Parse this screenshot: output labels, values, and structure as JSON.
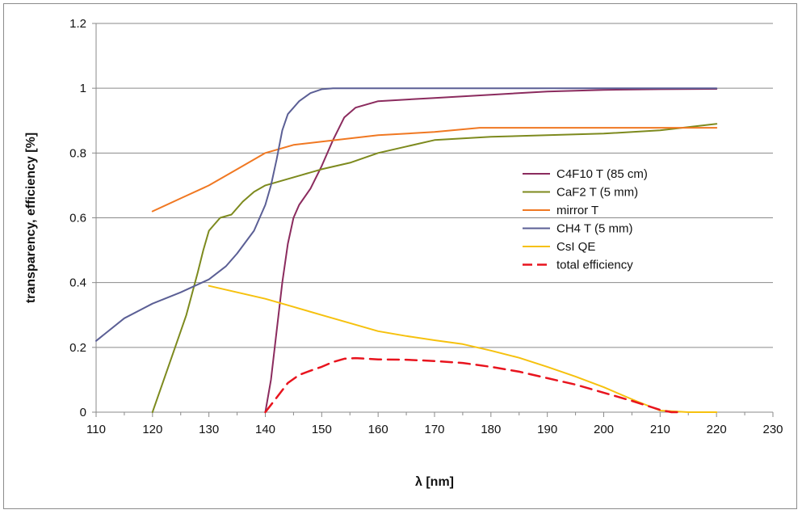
{
  "chart_data": {
    "type": "line",
    "title": "",
    "xlabel": "λ [nm]",
    "ylabel": "transparency, efficiency [%]",
    "xlim": [
      110,
      230
    ],
    "ylim": [
      0,
      1.2
    ],
    "x_ticks": [
      110,
      120,
      130,
      140,
      150,
      160,
      170,
      180,
      190,
      200,
      210,
      220,
      230
    ],
    "y_ticks": [
      0,
      0.2,
      0.4,
      0.6,
      0.8,
      1,
      1.2
    ],
    "x_tick_labels": [
      "110",
      "120",
      "130",
      "140",
      "150",
      "160",
      "170",
      "180",
      "190",
      "200",
      "210",
      "220",
      "230"
    ],
    "y_tick_labels": [
      "0",
      "0.2",
      "0.4",
      "0.6",
      "0.8",
      "1",
      "1.2"
    ],
    "grid": "horizontal",
    "legend_position": "right",
    "series": [
      {
        "name": "C4F10 T (85 cm)",
        "color": "#8B2B5E",
        "dash": "solid",
        "x": [
          140,
          141,
          142,
          143,
          144,
          145,
          146,
          148,
          150,
          152,
          154,
          156,
          158,
          160,
          170,
          180,
          190,
          200,
          210,
          220
        ],
        "y": [
          0,
          0.1,
          0.25,
          0.4,
          0.52,
          0.6,
          0.64,
          0.69,
          0.76,
          0.84,
          0.91,
          0.94,
          0.95,
          0.96,
          0.97,
          0.98,
          0.99,
          0.995,
          0.997,
          0.998
        ]
      },
      {
        "name": "CaF2 T (5 mm)",
        "color": "#7D8A1E",
        "dash": "solid",
        "x": [
          120,
          122,
          124,
          126,
          128,
          129,
          130,
          131,
          132,
          134,
          136,
          138,
          140,
          142,
          144,
          146,
          150,
          155,
          160,
          165,
          170,
          175,
          180,
          190,
          200,
          210,
          220
        ],
        "y": [
          0,
          0.1,
          0.2,
          0.3,
          0.43,
          0.5,
          0.56,
          0.58,
          0.6,
          0.61,
          0.65,
          0.68,
          0.7,
          0.71,
          0.72,
          0.73,
          0.75,
          0.77,
          0.8,
          0.82,
          0.84,
          0.845,
          0.85,
          0.855,
          0.86,
          0.87,
          0.89
        ]
      },
      {
        "name": "mirror T",
        "color": "#F07822",
        "dash": "solid",
        "x": [
          120,
          125,
          130,
          135,
          140,
          145,
          150,
          155,
          160,
          170,
          178,
          190,
          200,
          210,
          220
        ],
        "y": [
          0.62,
          0.66,
          0.7,
          0.75,
          0.8,
          0.825,
          0.835,
          0.845,
          0.855,
          0.865,
          0.878,
          0.878,
          0.878,
          0.878,
          0.878
        ]
      },
      {
        "name": "CH4 T (5 mm)",
        "color": "#5B5F95",
        "dash": "solid",
        "x": [
          110,
          115,
          120,
          125,
          130,
          133,
          135,
          138,
          140,
          141,
          142,
          143,
          144,
          146,
          148,
          150,
          152,
          160,
          180,
          200,
          220
        ],
        "y": [
          0.22,
          0.29,
          0.335,
          0.37,
          0.41,
          0.45,
          0.49,
          0.56,
          0.64,
          0.7,
          0.78,
          0.87,
          0.92,
          0.96,
          0.985,
          0.997,
          1.0,
          1.0,
          1.0,
          1.0,
          1.0
        ]
      },
      {
        "name": "CsI QE",
        "color": "#F6C10E",
        "dash": "solid",
        "x": [
          130,
          135,
          140,
          145,
          150,
          155,
          160,
          165,
          170,
          175,
          180,
          185,
          190,
          195,
          200,
          205,
          210,
          215,
          220
        ],
        "y": [
          0.39,
          0.37,
          0.35,
          0.325,
          0.3,
          0.275,
          0.25,
          0.235,
          0.222,
          0.21,
          0.19,
          0.168,
          0.14,
          0.11,
          0.077,
          0.04,
          0.005,
          0,
          0
        ]
      },
      {
        "name": "total efficiency",
        "color": "#E8141E",
        "dash": "dashed",
        "x": [
          140,
          142,
          144,
          146,
          148,
          150,
          152,
          154,
          156,
          158,
          160,
          165,
          170,
          175,
          180,
          185,
          190,
          195,
          200,
          205,
          210,
          212,
          214
        ],
        "y": [
          0,
          0.045,
          0.09,
          0.115,
          0.128,
          0.14,
          0.155,
          0.165,
          0.167,
          0.165,
          0.163,
          0.162,
          0.158,
          0.152,
          0.14,
          0.125,
          0.105,
          0.085,
          0.06,
          0.035,
          0.007,
          0,
          0
        ]
      }
    ]
  }
}
